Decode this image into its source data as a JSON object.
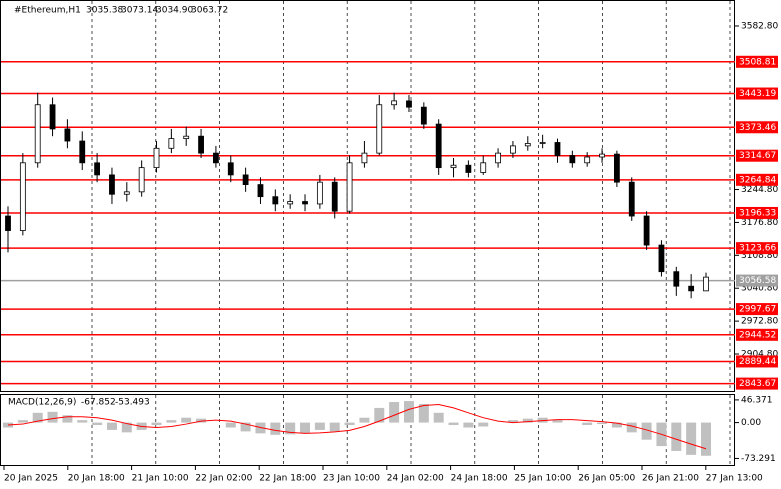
{
  "chart_data": {
    "type": "candlestick",
    "title": "#Ethereum,H1",
    "quote": [
      "3035.38",
      "3073.14",
      "3034.90",
      "3063.72"
    ],
    "open": [
      3190,
      3160,
      3300,
      3420,
      3370,
      3345,
      3300,
      3275,
      3235,
      3240,
      3290,
      3330,
      3350,
      3355,
      3320,
      3300,
      3275,
      3255,
      3230,
      3215,
      3220,
      3215,
      3260,
      3200,
      3300,
      3320,
      3420,
      3428,
      3415,
      3380,
      3290,
      3295,
      3280,
      3300,
      3320,
      3335,
      3340,
      3342,
      3315,
      3300,
      3312,
      3318,
      3260,
      3190,
      3130,
      3075,
      3045,
      3035.38
    ],
    "high": [
      3210,
      3320,
      3445,
      3435,
      3390,
      3365,
      3320,
      3290,
      3260,
      3305,
      3345,
      3370,
      3375,
      3370,
      3335,
      3315,
      3290,
      3270,
      3245,
      3235,
      3235,
      3275,
      3270,
      3315,
      3345,
      3440,
      3445,
      3440,
      3425,
      3390,
      3310,
      3305,
      3315,
      3330,
      3345,
      3355,
      3358,
      3350,
      3325,
      3322,
      3330,
      3325,
      3270,
      3200,
      3140,
      3085,
      3070,
      3073.14
    ],
    "low": [
      3115,
      3150,
      3290,
      3355,
      3330,
      3285,
      3260,
      3215,
      3220,
      3230,
      3280,
      3320,
      3335,
      3310,
      3290,
      3260,
      3240,
      3215,
      3200,
      3205,
      3200,
      3205,
      3185,
      3195,
      3290,
      3315,
      3410,
      3405,
      3370,
      3275,
      3270,
      3270,
      3275,
      3290,
      3310,
      3325,
      3330,
      3300,
      3290,
      3292,
      3300,
      3250,
      3180,
      3120,
      3065,
      3025,
      3020,
      3034.9
    ],
    "close": [
      3160,
      3300,
      3420,
      3370,
      3345,
      3300,
      3275,
      3235,
      3240,
      3290,
      3330,
      3350,
      3355,
      3320,
      3300,
      3275,
      3255,
      3230,
      3215,
      3220,
      3215,
      3260,
      3200,
      3300,
      3320,
      3420,
      3428,
      3415,
      3380,
      3290,
      3295,
      3280,
      3300,
      3320,
      3335,
      3340,
      3342,
      3315,
      3300,
      3312,
      3318,
      3260,
      3190,
      3130,
      3075,
      3045,
      3035.38,
      3063.72
    ],
    "ylim": [
      2826.3,
      3636.5
    ],
    "yticks": [
      {
        "value": 3582.8,
        "label": "3582.80"
      },
      {
        "value": 3244.8,
        "label": "3244.80"
      },
      {
        "value": 3176.8,
        "label": "3176.80"
      },
      {
        "value": 3108.8,
        "label": "3108.80"
      },
      {
        "value": 3040.8,
        "label": "3040.80"
      },
      {
        "value": 2972.8,
        "label": "2972.80"
      },
      {
        "value": 2904.8,
        "label": "2904.80"
      }
    ],
    "levels": [
      3508.81,
      3443.19,
      3373.46,
      3314.67,
      3264.84,
      3196.33,
      3123.66,
      2997.67,
      2944.52,
      2889.44,
      2843.67
    ],
    "level_color": "#ff0000",
    "bid": 3056.58,
    "bid_color": "#a0a0a0",
    "x_labels": [
      "20 Jan 2025",
      "20 Jan 18:00",
      "21 Jan 10:00",
      "22 Jan 02:00",
      "22 Jan 18:00",
      "23 Jan 10:00",
      "24 Jan 02:00",
      "24 Jan 18:00",
      "25 Jan 10:00",
      "26 Jan 05:00",
      "26 Jan 21:00",
      "27 Jan 13:00"
    ],
    "macd": {
      "title": "MACD(12,26,9)",
      "histogram": [
        -10,
        5,
        20,
        22,
        15,
        5,
        -5,
        -15,
        -20,
        -15,
        -5,
        5,
        10,
        8,
        0,
        -10,
        -18,
        -22,
        -25,
        -24,
        -22,
        -15,
        -18,
        -5,
        10,
        30,
        42,
        44,
        38,
        20,
        -5,
        -10,
        -8,
        0,
        5,
        8,
        10,
        6,
        0,
        -5,
        -3,
        -10,
        -20,
        -35,
        -48,
        -58,
        -66,
        -67.852
      ],
      "signal": [
        -5,
        -3,
        3,
        8,
        12,
        12,
        10,
        5,
        -2,
        -8,
        -10,
        -8,
        -3,
        3,
        5,
        3,
        -3,
        -10,
        -16,
        -20,
        -22,
        -21,
        -19,
        -16,
        -8,
        3,
        15,
        27,
        35,
        37,
        30,
        20,
        10,
        3,
        0,
        2,
        4,
        6,
        6,
        4,
        2,
        -1,
        -7,
        -15,
        -24,
        -34,
        -44,
        -53.493
      ],
      "histogram_color": "#c0c0c0",
      "signal_color": "#ff0000",
      "ylim": [
        -86.7,
        56.4
      ],
      "yticks": [
        46.371,
        {
          "value": 0,
          "label": "0.00"
        },
        -73.291
      ]
    }
  }
}
